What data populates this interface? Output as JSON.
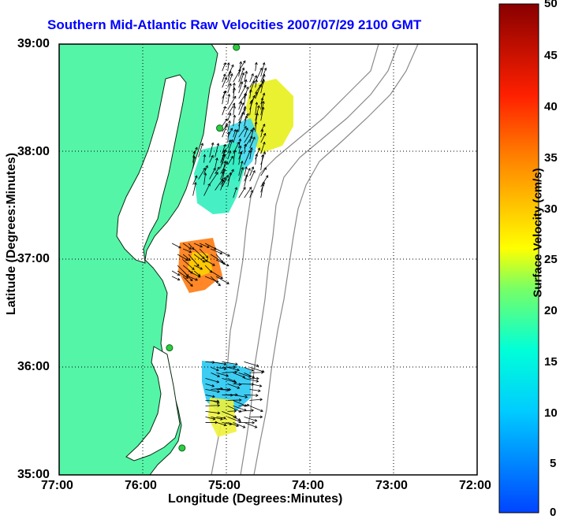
{
  "title": "Southern Mid-Atlantic Raw Velocities 2007/07/29 2100 GMT",
  "axes": {
    "xlabel": "Longitude (Degrees:Minutes)",
    "ylabel": "Latitude (Degrees:Minutes)",
    "xticks": [
      "77:00",
      "76:00",
      "75:00",
      "74:00",
      "73:00",
      "72:00"
    ],
    "yticks": [
      "39:00",
      "38:00",
      "37:00",
      "36:00",
      "35:00"
    ],
    "xlim": [
      -77,
      -72
    ],
    "ylim": [
      35,
      39
    ]
  },
  "colorbar": {
    "label": "Surface Velocity (cm/s)",
    "ticks": [
      "50",
      "45",
      "40",
      "35",
      "30",
      "25",
      "20",
      "15",
      "10",
      "5",
      "0"
    ],
    "min": 0,
    "max": 50
  },
  "colors": {
    "land": "#55f5a7",
    "water": "#ffffff",
    "title": "#0000ff",
    "bathymetry": "#8a8a8a",
    "station": "#2ecc40"
  },
  "stations": [
    {
      "lon": -74.88,
      "lat": 38.97
    },
    {
      "lon": -75.08,
      "lat": 38.22
    },
    {
      "lon": -75.68,
      "lat": 36.18
    },
    {
      "lon": -75.53,
      "lat": 35.25
    }
  ],
  "chart_data": {
    "type": "map",
    "description_units": "surface velocity cm/s",
    "clusters": [
      {
        "lon0": -75.05,
        "lon1": -74.55,
        "lat0": 37.55,
        "lat1": 38.75,
        "speed_range": [
          5,
          25
        ],
        "direction": "north-northeast"
      },
      {
        "lon0": -75.4,
        "lon1": -75.05,
        "lat0": 37.55,
        "lat1": 37.95,
        "speed_range": [
          12,
          22
        ],
        "direction": "north-northeast"
      },
      {
        "lon0": -75.65,
        "lon1": -75.1,
        "lat0": 36.8,
        "lat1": 37.15,
        "speed_range": [
          22,
          38
        ],
        "direction": "southeast"
      },
      {
        "lon0": -75.25,
        "lon1": -74.7,
        "lat0": 35.45,
        "lat1": 36.05,
        "speed_range": [
          5,
          22
        ],
        "direction": "east"
      }
    ]
  }
}
